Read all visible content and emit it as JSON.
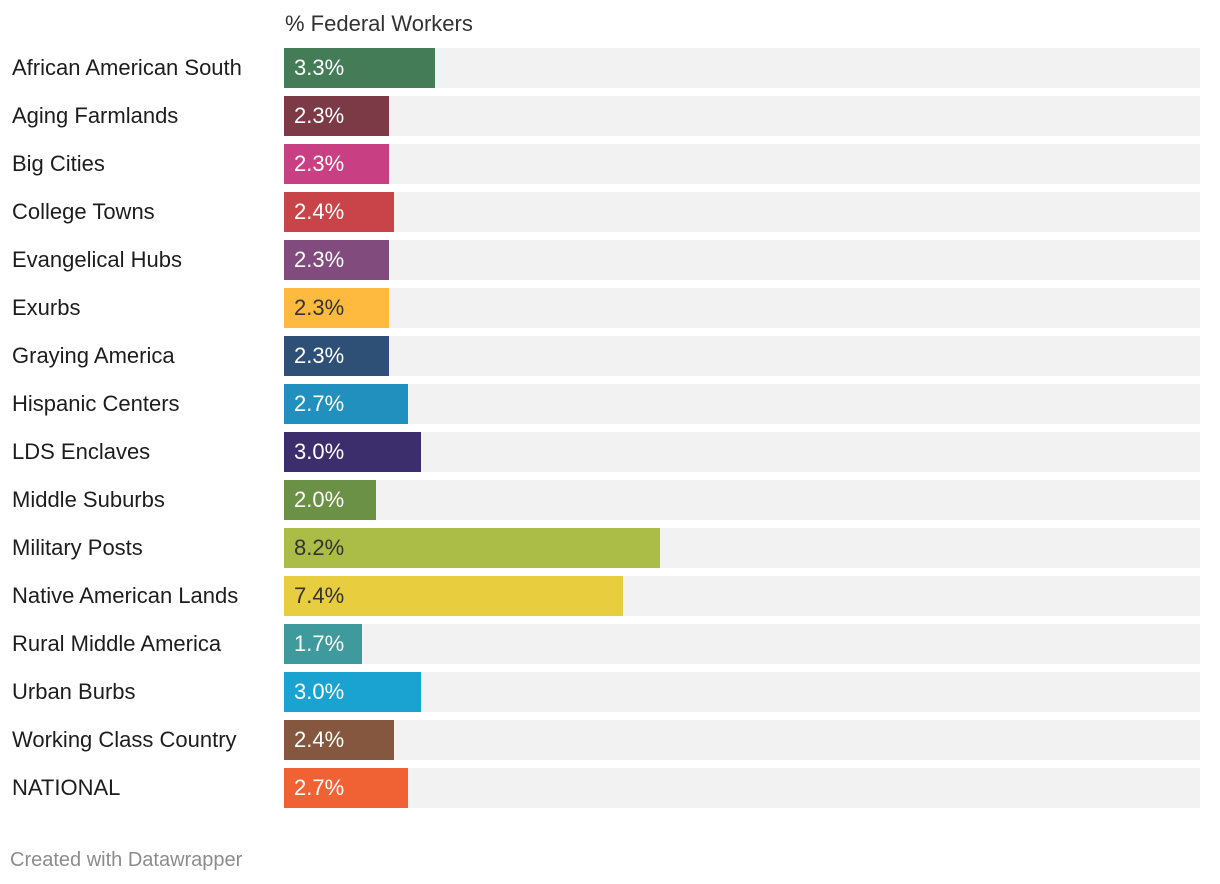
{
  "chart_data": {
    "type": "bar",
    "orientation": "horizontal",
    "column_header": "% Federal Workers",
    "xlim": [
      0,
      20
    ],
    "grid": false,
    "categories": [
      "African American South",
      "Aging Farmlands",
      "Big Cities",
      "College Towns",
      "Evangelical Hubs",
      "Exurbs",
      "Graying America",
      "Hispanic Centers",
      "LDS Enclaves",
      "Middle Suburbs",
      "Military Posts",
      "Native American Lands",
      "Rural Middle America",
      "Urban Burbs",
      "Working Class Country",
      "NATIONAL"
    ],
    "values": [
      3.3,
      2.3,
      2.3,
      2.4,
      2.3,
      2.3,
      2.3,
      2.7,
      3.0,
      2.0,
      8.2,
      7.4,
      1.7,
      3.0,
      2.4,
      2.7
    ],
    "value_labels": [
      "3.3%",
      "2.3%",
      "2.3%",
      "2.4%",
      "2.3%",
      "2.3%",
      "2.3%",
      "2.7%",
      "3.0%",
      "2.0%",
      "8.2%",
      "7.4%",
      "1.7%",
      "3.0%",
      "2.4%",
      "2.7%"
    ],
    "colors": [
      "#437c57",
      "#7c3a46",
      "#c93f84",
      "#c94448",
      "#824b7e",
      "#fdba3e",
      "#2e5076",
      "#2190be",
      "#3c2d6c",
      "#6a9145",
      "#abbd47",
      "#e8cd3f",
      "#3e9a9c",
      "#1aa3d0",
      "#86573f",
      "#f06233"
    ],
    "label_colors": [
      "#ffffff",
      "#ffffff",
      "#ffffff",
      "#ffffff",
      "#ffffff",
      "#333333",
      "#ffffff",
      "#ffffff",
      "#ffffff",
      "#ffffff",
      "#333333",
      "#333333",
      "#ffffff",
      "#ffffff",
      "#ffffff",
      "#ffffff"
    ]
  },
  "footer": {
    "credit": "Created with Datawrapper"
  }
}
